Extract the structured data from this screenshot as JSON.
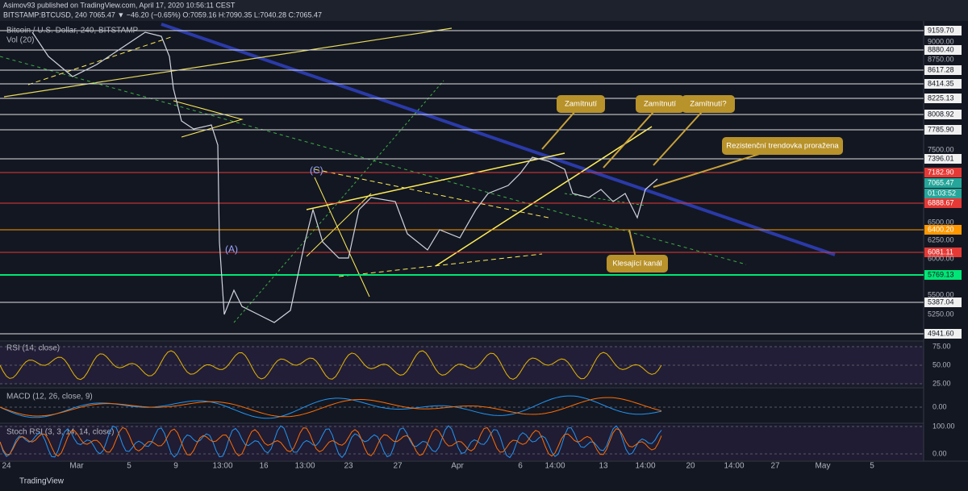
{
  "header": {
    "line1": "Asimov93 published on TradingView.com, April 17, 2020 10:56:11 CEST",
    "line2": "BITSTAMP:BTCUSD, 240 7065.47 ▼ −46.20 (−0.65%) O:7059.16 H:7090.35 L:7040.28 C:7065.47"
  },
  "main": {
    "symbol": "Bitcoin / U.S. Dollar, 240, BITSTAMP",
    "volume": "Vol (20)",
    "wave_c": "(C)",
    "wave_a": "(A)"
  },
  "annotations": [
    "Zamítnutí",
    "Zamítnutí",
    "Zamítnutí?",
    "Rezistenční trendovka proražena",
    "Klesající kanál"
  ],
  "price_axis": [
    "9159.70",
    "9000.00",
    "8880.40",
    "8750.00",
    "8617.28",
    "8414.35",
    "8225.13",
    "8008.92",
    "7785.90",
    "7500.00",
    "7396.01",
    "7182.90",
    "7065.47",
    "01:03:52",
    "6888.67",
    "6500.00",
    "6400.20",
    "6250.00",
    "6081.11",
    "6000.00",
    "5769.13",
    "5500.00",
    "5387.04",
    "5250.00",
    "4941.60"
  ],
  "indicators": {
    "rsi": {
      "name": "RSI (14, close)",
      "axis": [
        "75.00",
        "50.00",
        "25.00"
      ]
    },
    "macd": {
      "name": "MACD (12, 26, close, 9)",
      "axis": [
        "0.00"
      ]
    },
    "stoch": {
      "name": "Stoch RSI (3, 3, 14, 14, close)",
      "axis": [
        "100.00",
        "0.00"
      ]
    }
  },
  "time_axis": [
    "24",
    "Mar",
    "5",
    "9",
    "13:00",
    "16",
    "13:00",
    "23",
    "27",
    "Apr",
    "6",
    "14:00",
    "13",
    "14:00",
    "20",
    "14:00",
    "27",
    "May",
    "5"
  ],
  "footer": "TradingView"
}
